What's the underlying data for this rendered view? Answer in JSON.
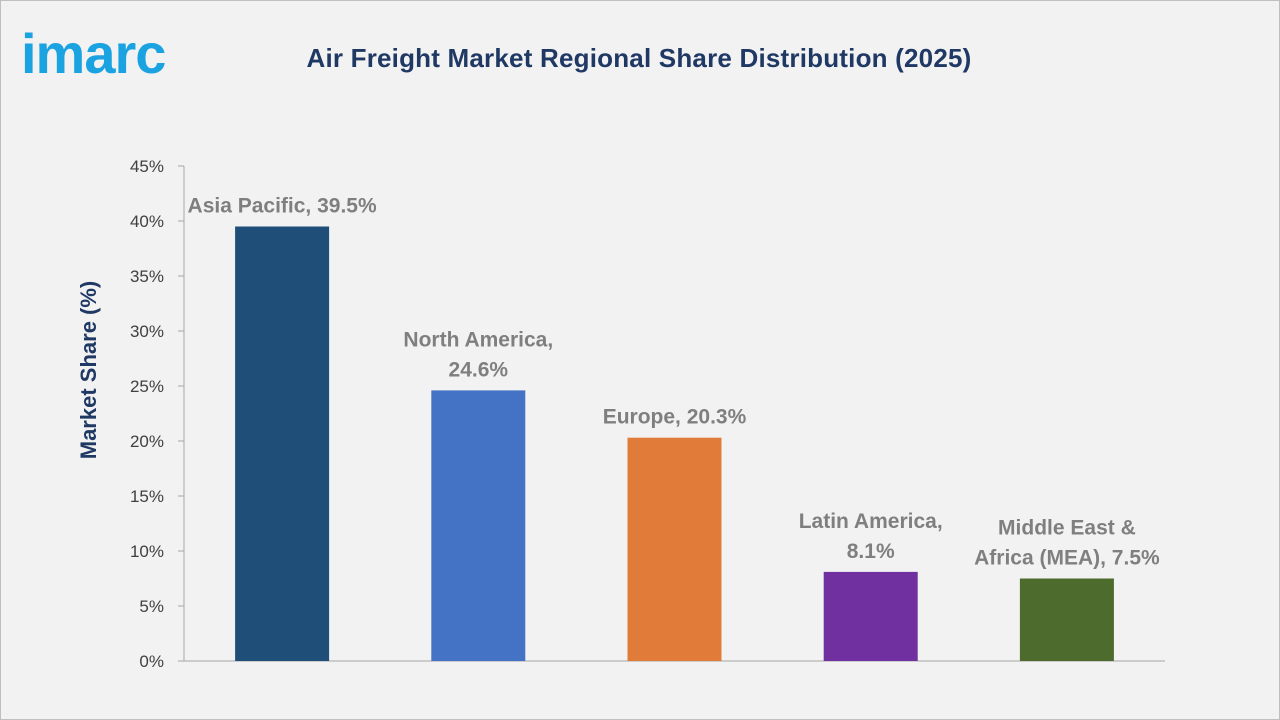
{
  "logo": {
    "text": "imarc",
    "color": "#1aa3e0"
  },
  "chart_data": {
    "type": "bar",
    "title": "Air Freight Market Regional Share Distribution (2025)",
    "xlabel": "",
    "ylabel": "Market Share (%)",
    "ylim": [
      0,
      45
    ],
    "yticks": [
      "0%",
      "5%",
      "10%",
      "15%",
      "20%",
      "25%",
      "30%",
      "35%",
      "40%",
      "45%"
    ],
    "grid": false,
    "categories": [
      "Asia Pacific",
      "North America",
      "Europe",
      "Latin America",
      "Middle East & Africa (MEA)"
    ],
    "values": [
      39.5,
      24.6,
      20.3,
      8.1,
      7.5
    ],
    "data_labels": [
      [
        "Asia Pacific, 39.5%"
      ],
      [
        "North America,",
        "24.6%"
      ],
      [
        "Europe, 20.3%"
      ],
      [
        "Latin America,",
        "8.1%"
      ],
      [
        "Middle East &",
        "Africa (MEA), 7.5%"
      ]
    ],
    "colors": [
      "#1f4e79",
      "#4472c4",
      "#e07b39",
      "#7030a0",
      "#4e6b2e"
    ]
  }
}
